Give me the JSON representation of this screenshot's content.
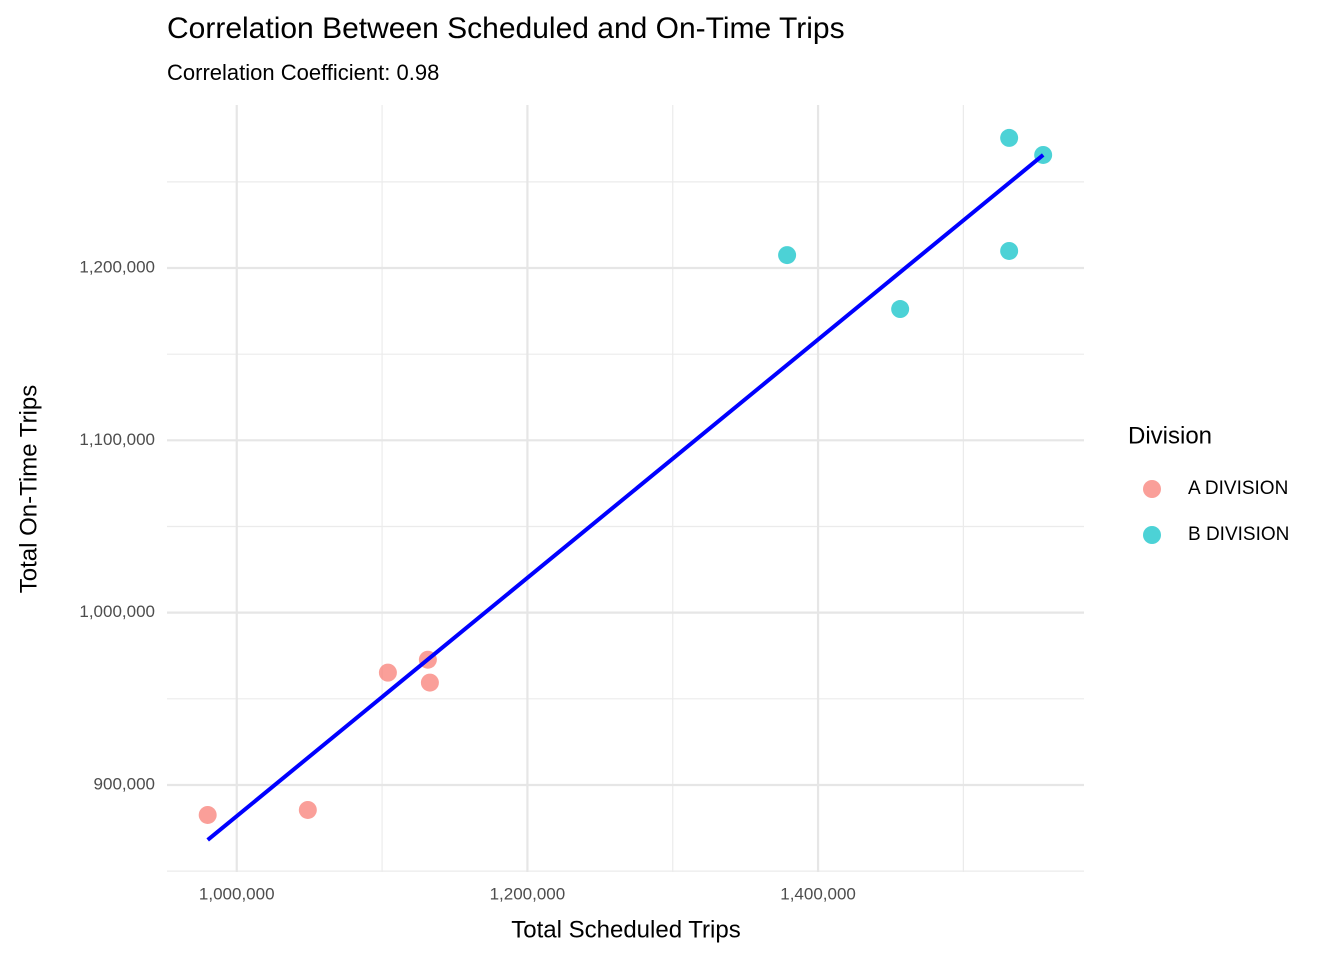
{
  "chart_data": {
    "type": "scatter",
    "title": "Correlation Between Scheduled and On-Time Trips",
    "subtitle": "Correlation Coefficient: 0.98",
    "x_label": "Total Scheduled Trips",
    "y_label": "Total On-Time Trips",
    "legend_title": "Division",
    "legend_position": "right",
    "grid": true,
    "xlim": [
      952000,
      1583000
    ],
    "ylim": [
      849500,
      1294600
    ],
    "xticks": [
      {
        "value": 1000000,
        "label": "1,000,000"
      },
      {
        "value": 1200000,
        "label": "1,200,000"
      },
      {
        "value": 1400000,
        "label": "1,400,000"
      }
    ],
    "yticks": [
      {
        "value": 900000,
        "label": "900,000"
      },
      {
        "value": 1000000,
        "label": "1,000,000"
      },
      {
        "value": 1100000,
        "label": "1,100,000"
      },
      {
        "value": 1200000,
        "label": "1,200,000"
      }
    ],
    "x_minor_grid": [
      1100000,
      1300000,
      1500000
    ],
    "y_minor_grid": [
      850000,
      950000,
      1050000,
      1150000,
      1250000
    ],
    "series": [
      {
        "name": "A DIVISION",
        "color": "#F8766D",
        "x": [
          980000,
          1048900,
          1104000,
          1131500,
          1132900
        ],
        "values": [
          882600,
          885500,
          965200,
          972700,
          959400
        ]
      },
      {
        "name": "B DIVISION",
        "color": "#00BFC4",
        "x": [
          1378700,
          1456500,
          1531500,
          1531500,
          1554900
        ],
        "values": [
          1207500,
          1176200,
          1275500,
          1209900,
          1265600
        ]
      }
    ],
    "trend_line": {
      "color": "#0000FF",
      "x": [
        980000,
        1554900
      ],
      "values": [
        868100,
        1265600
      ]
    }
  }
}
